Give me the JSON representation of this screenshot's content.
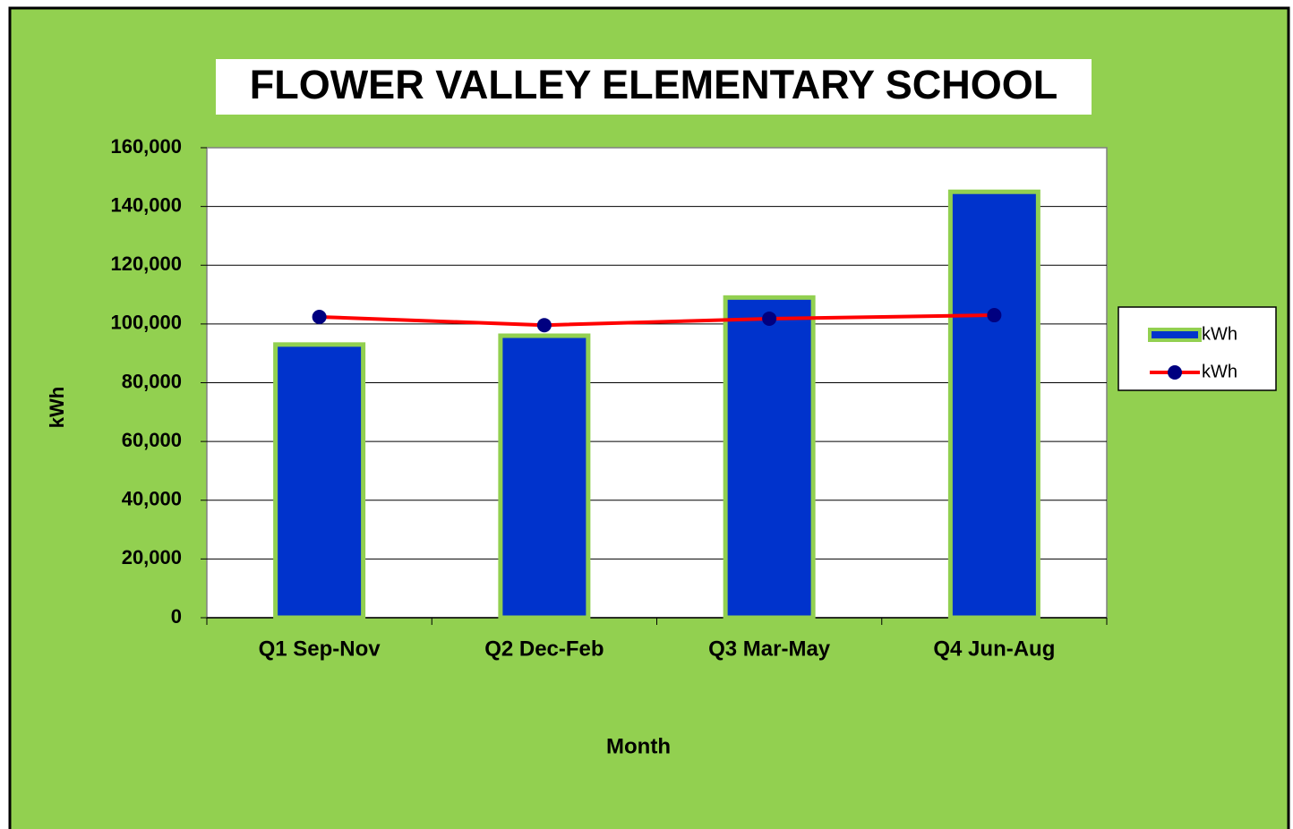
{
  "chart_data": {
    "type": "bar",
    "title": "FLOWER VALLEY ELEMENTARY SCHOOL",
    "x_label": "Month",
    "y_label": "kWh",
    "categories": [
      "Q1 Sep-Nov",
      "Q2 Dec-Feb",
      "Q3 Mar-May",
      "Q4 Jun-Aug"
    ],
    "series": [
      {
        "name": "kWh",
        "type": "bar",
        "color": "#0033cc",
        "edge_color": "#92d050",
        "values": [
          93000,
          96000,
          109000,
          145000
        ]
      },
      {
        "name": "kWh",
        "type": "line",
        "color": "#ff0000",
        "marker_color": "#000080",
        "values": [
          102400,
          99600,
          101800,
          103000
        ]
      }
    ],
    "ylim": [
      0,
      160000
    ],
    "yticks": [
      0,
      {
        "value": 20000,
        "label": "20,000"
      },
      {
        "value": 40000,
        "label": "40,000"
      },
      {
        "value": 60000,
        "label": "60,000"
      },
      {
        "value": 80000,
        "label": "80,000"
      },
      {
        "value": 100000,
        "label": "100,000"
      },
      {
        "value": 120000,
        "label": "120,000"
      },
      {
        "value": 140000,
        "label": "140,000"
      },
      {
        "value": 160000,
        "label": "160,000"
      }
    ],
    "grid": true,
    "legend": "right",
    "background": "#92d050"
  }
}
